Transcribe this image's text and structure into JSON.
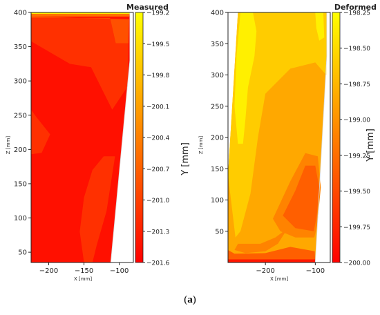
{
  "caption": {
    "open": "(",
    "letter": "a",
    "close": ")"
  },
  "chart_data": [
    {
      "type": "heatmap",
      "title": "Measured",
      "xlabel": "X [mm]",
      "ylabel": "Z [mm]",
      "colorbar_label": "Y [mm]",
      "xlim": [
        -225,
        -80
      ],
      "ylim": [
        35,
        400
      ],
      "xticks": [
        -200,
        -150,
        -100
      ],
      "yticks": [
        50,
        100,
        150,
        200,
        250,
        300,
        350,
        400
      ],
      "colorbar_ticks": [
        "-199.2",
        "-199.5",
        "-199.8",
        "-200.1",
        "-200.4",
        "-200.7",
        "-201.0",
        "-201.3",
        "-201.6"
      ],
      "colorbar_range": [
        -201.6,
        -199.2
      ],
      "colormap": [
        "#ff0000",
        "#ffff00"
      ],
      "domain_outline": [
        [
          -225,
          400
        ],
        [
          -85,
          400
        ],
        [
          -85,
          330
        ],
        [
          -112,
          35
        ],
        [
          -225,
          35
        ]
      ],
      "levels": [
        {
          "value": -201.45,
          "region": [
            [
              -225,
              35
            ],
            [
              -112,
              35
            ],
            [
              -85,
              330
            ],
            [
              -85,
              400
            ],
            [
              -225,
              400
            ]
          ]
        },
        {
          "value": -201.15,
          "region": [
            [
              -225,
              358
            ],
            [
              -170,
              325
            ],
            [
              -140,
              320
            ],
            [
              -110,
              258
            ],
            [
              -88,
              292
            ],
            [
              -87,
              355
            ],
            [
              -105,
              355
            ],
            [
              -113,
              392
            ],
            [
              -225,
              392
            ]
          ]
        },
        {
          "value": -201.15,
          "region": [
            [
              -225,
              258
            ],
            [
              -218,
              248
            ],
            [
              -198,
              222
            ],
            [
              -210,
              195
            ],
            [
              -225,
              193
            ]
          ]
        },
        {
          "value": -201.15,
          "region": [
            [
              -150,
              130
            ],
            [
              -138,
              170
            ],
            [
              -122,
              190
            ],
            [
              -106,
              190
            ],
            [
              -118,
              110
            ],
            [
              -132,
              60
            ],
            [
              -138,
              35
            ],
            [
              -150,
              35
            ],
            [
              -156,
              80
            ]
          ]
        },
        {
          "value": -200.85,
          "region": [
            [
              -225,
              392
            ],
            [
              -113,
              392
            ],
            [
              -105,
              355
            ],
            [
              -87,
              355
            ],
            [
              -86,
              390
            ],
            [
              -225,
              394
            ]
          ]
        },
        {
          "value": -200.55,
          "region": [
            [
              -225,
              394
            ],
            [
              -86,
              394
            ],
            [
              -85,
              398
            ],
            [
              -225,
              398
            ]
          ]
        },
        {
          "value": -199.35,
          "region": [
            [
              -225,
              398
            ],
            [
              -85,
              398
            ],
            [
              -85,
              400
            ],
            [
              -225,
              400
            ]
          ]
        }
      ]
    },
    {
      "type": "heatmap",
      "title": "Deformed",
      "xlabel": "X [mm]",
      "ylabel": "Z [mm]",
      "colorbar_label": "Y [mm]",
      "xlim": [
        -275,
        -70
      ],
      "ylim": [
        0,
        400
      ],
      "xticks": [
        -200,
        -100
      ],
      "yticks": [
        50,
        100,
        150,
        200,
        250,
        300,
        350,
        400
      ],
      "colorbar_ticks": [
        "-198.25",
        "-198.50",
        "-198.75",
        "-199.00",
        "-199.25",
        "-199.50",
        "-199.75",
        "-200.00"
      ],
      "colorbar_range": [
        -200.0,
        -198.25
      ],
      "colormap": [
        "#ff0000",
        "#ffff00"
      ],
      "domain_outline": [
        [
          -255,
          400
        ],
        [
          -77,
          400
        ],
        [
          -77,
          330
        ],
        [
          -100,
          0
        ],
        [
          -275,
          0
        ],
        [
          -275,
          140
        ]
      ],
      "levels": [
        {
          "value": -198.85,
          "region": [
            [
              -275,
              0
            ],
            [
              -100,
              0
            ],
            [
              -77,
              330
            ],
            [
              -77,
              400
            ],
            [
              -255,
              400
            ],
            [
              -275,
              140
            ]
          ]
        },
        {
          "value": -198.6,
          "region": [
            [
              -255,
              400
            ],
            [
              -77,
              400
            ],
            [
              -78,
              300
            ],
            [
              -100,
              320
            ],
            [
              -150,
              310
            ],
            [
              -200,
              270
            ],
            [
              -215,
              200
            ],
            [
              -230,
              110
            ],
            [
              -250,
              50
            ],
            [
              -260,
              40
            ],
            [
              -275,
              140
            ]
          ]
        },
        {
          "value": -198.6,
          "region": [
            [
              -100,
              400
            ],
            [
              -77,
              400
            ],
            [
              -78,
              330
            ],
            [
              -88,
              340
            ],
            [
              -100,
              360
            ]
          ]
        },
        {
          "value": -198.35,
          "region": [
            [
              -250,
              400
            ],
            [
              -225,
              400
            ],
            [
              -218,
              370
            ],
            [
              -222,
              330
            ],
            [
              -235,
              280
            ],
            [
              -240,
              230
            ],
            [
              -245,
              190
            ],
            [
              -255,
              190
            ],
            [
              -262,
              250
            ],
            [
              -258,
              330
            ]
          ]
        },
        {
          "value": -198.35,
          "region": [
            [
              -100,
              400
            ],
            [
              -84,
              400
            ],
            [
              -82,
              360
            ],
            [
              -92,
              355
            ],
            [
              -98,
              375
            ]
          ]
        },
        {
          "value": -199.1,
          "region": [
            [
              -185,
              70
            ],
            [
              -150,
              130
            ],
            [
              -120,
              175
            ],
            [
              -95,
              170
            ],
            [
              -89,
              120
            ],
            [
              -96,
              60
            ],
            [
              -102,
              40
            ],
            [
              -140,
              40
            ],
            [
              -170,
              50
            ]
          ]
        },
        {
          "value": -199.35,
          "region": [
            [
              -165,
              75
            ],
            [
              -140,
              115
            ],
            [
              -120,
              155
            ],
            [
              -100,
              155
            ],
            [
              -92,
              120
            ],
            [
              -97,
              75
            ],
            [
              -103,
              50
            ],
            [
              -140,
              55
            ]
          ]
        },
        {
          "value": -199.1,
          "region": [
            [
              -255,
              30
            ],
            [
              -210,
              30
            ],
            [
              -180,
              40
            ],
            [
              -155,
              55
            ],
            [
              -175,
              30
            ],
            [
              -200,
              18
            ],
            [
              -240,
              15
            ],
            [
              -262,
              20
            ]
          ]
        },
        {
          "value": -199.35,
          "region": [
            [
              -275,
              0
            ],
            [
              -100,
              0
            ],
            [
              -101,
              18
            ],
            [
              -150,
              25
            ],
            [
              -200,
              15
            ],
            [
              -262,
              14
            ],
            [
              -275,
              20
            ]
          ]
        },
        {
          "value": -199.85,
          "region": [
            [
              -275,
              0
            ],
            [
              -100,
              0
            ],
            [
              -100,
              5
            ],
            [
              -275,
              5
            ]
          ]
        }
      ]
    }
  ]
}
